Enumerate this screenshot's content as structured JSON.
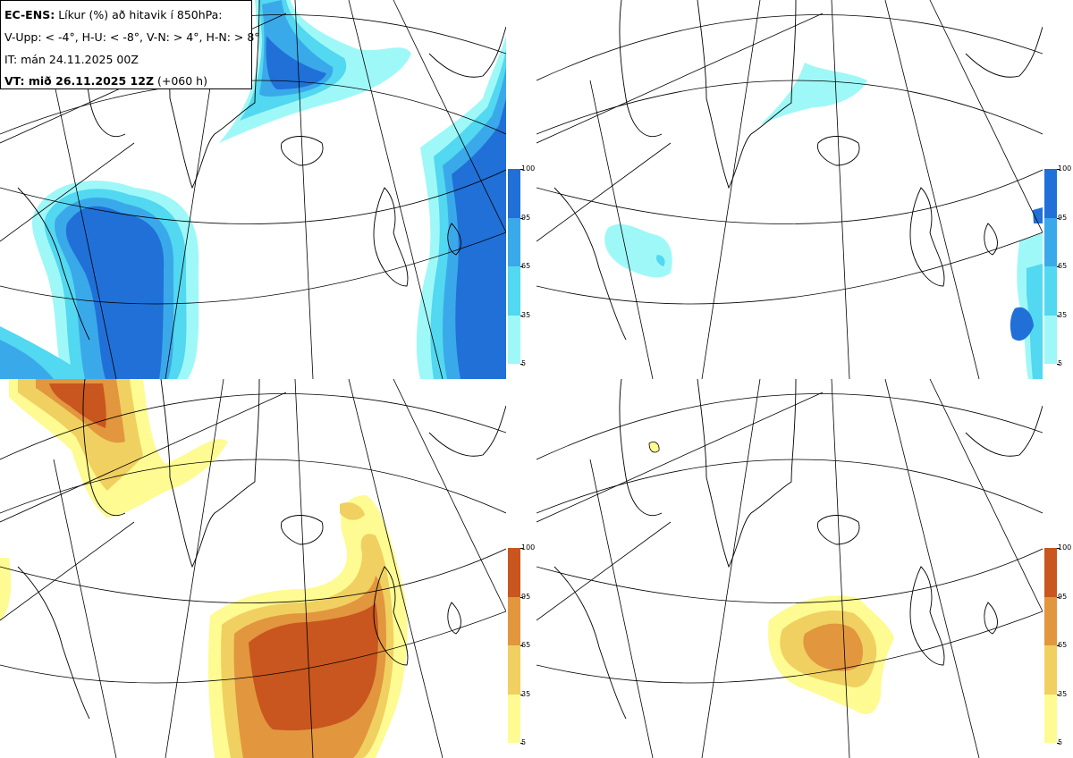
{
  "info": {
    "line1_bold": "EC-ENS:",
    "line1_rest": "Líkur (%) að hitavik í 850hPa:",
    "line2": "V-Upp: < -4°, H-U: < -8°, V-N: > 4°, H-N: > 8°",
    "line3": "IT: mán 24.11.2025 00Z",
    "line4_bold": "VT: mið 26.11.2025 12Z",
    "line4_rest": "(+060 h)"
  },
  "colorbar_ticks": [
    "100",
    "95",
    "65",
    "35",
    "5"
  ],
  "colors": {
    "blue": [
      "#9ff8f8",
      "#52d8f0",
      "#3aa9ea",
      "#2070d8"
    ],
    "warm": [
      "#fdfb92",
      "#f0d060",
      "#e2963e",
      "#c8561e"
    ],
    "coast": "#000000",
    "grid": "#000000"
  },
  "panels": [
    {
      "id": "cold-4",
      "scheme": "blue"
    },
    {
      "id": "cold-8",
      "scheme": "blue"
    },
    {
      "id": "warm-4",
      "scheme": "warm"
    },
    {
      "id": "warm-8",
      "scheme": "warm"
    }
  ]
}
